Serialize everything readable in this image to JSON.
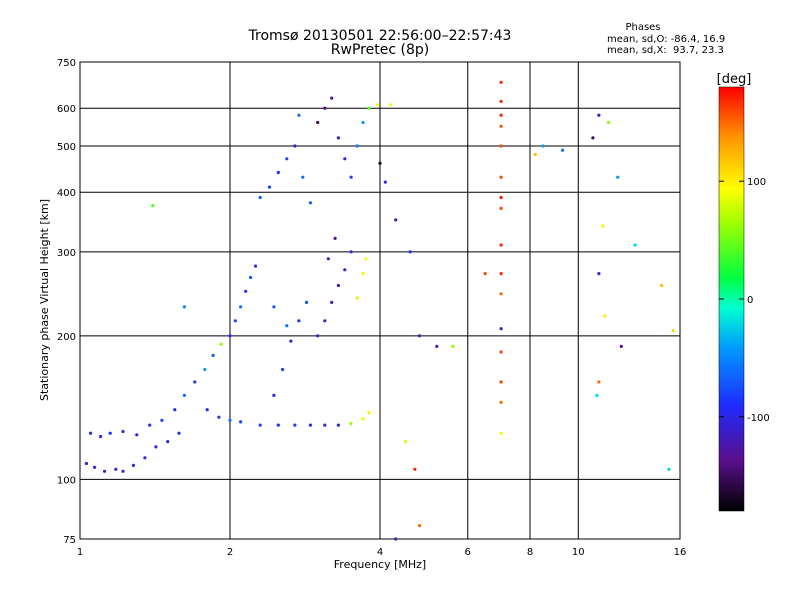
{
  "chart_data": {
    "type": "scatter",
    "title": "Tromsø 20130501 22:56:00–22:57:43",
    "subtitle": "RwPretec (8p)",
    "xlabel": "Frequency [MHz]",
    "ylabel": "Stationary phase Virtual Height [km]",
    "x_scale": "log",
    "y_scale": "log",
    "xlim": [
      1,
      16
    ],
    "ylim": [
      75,
      750
    ],
    "x_ticks": [
      1,
      2,
      4,
      6,
      8,
      10,
      16
    ],
    "x_tick_labels": [
      "1",
      "2",
      "4",
      "6",
      "8",
      "10",
      "16"
    ],
    "y_ticks": [
      75,
      100,
      200,
      300,
      400,
      500,
      600,
      750
    ],
    "y_tick_labels": [
      "75",
      "100",
      "200",
      "300",
      "400",
      "500",
      "600",
      "750"
    ],
    "grid": true,
    "phases_box": {
      "title": "Phases",
      "line1": "mean, sd,O: -86.4, 16.9",
      "line2": "mean, sd,X:  93.7, 23.3"
    },
    "colorbar": {
      "label": "[deg]",
      "range": [
        -180,
        180
      ],
      "ticks": [
        100,
        0,
        -100
      ],
      "tick_labels": [
        "100",
        "0",
        "-100"
      ]
    },
    "series": [
      {
        "points": [
          [
            1.03,
            108,
            -110
          ],
          [
            1.07,
            106,
            -105
          ],
          [
            1.12,
            104,
            -108
          ],
          [
            1.18,
            105,
            -100
          ],
          [
            1.22,
            104,
            -112
          ],
          [
            1.28,
            107,
            -95
          ],
          [
            1.35,
            111,
            -105
          ],
          [
            1.42,
            117,
            -100
          ],
          [
            1.5,
            120,
            -98
          ],
          [
            1.58,
            125,
            -92
          ],
          [
            1.05,
            125,
            -95
          ],
          [
            1.1,
            123,
            -100
          ],
          [
            1.15,
            125,
            -88
          ],
          [
            1.22,
            126,
            -95
          ],
          [
            1.3,
            124,
            -102
          ],
          [
            1.38,
            130,
            -90
          ],
          [
            1.46,
            133,
            -85
          ],
          [
            1.55,
            140,
            -90
          ],
          [
            1.62,
            150,
            -60
          ],
          [
            1.7,
            160,
            -80
          ],
          [
            1.78,
            170,
            -40
          ],
          [
            1.85,
            182,
            -70
          ],
          [
            1.92,
            192,
            60
          ],
          [
            2.0,
            200,
            -90
          ],
          [
            2.05,
            215,
            -80
          ],
          [
            2.1,
            230,
            -60
          ],
          [
            2.15,
            248,
            -90
          ],
          [
            2.2,
            265,
            -75
          ],
          [
            2.25,
            280,
            -100
          ],
          [
            1.8,
            140,
            -90
          ],
          [
            1.9,
            135,
            -85
          ],
          [
            2.0,
            133,
            -60
          ],
          [
            2.1,
            132,
            -80
          ],
          [
            2.3,
            130,
            -80
          ],
          [
            2.5,
            130,
            -90
          ],
          [
            2.7,
            130,
            -85
          ],
          [
            2.9,
            130,
            -95
          ],
          [
            3.1,
            130,
            -100
          ],
          [
            3.3,
            130,
            -100
          ],
          [
            3.5,
            131,
            60
          ],
          [
            3.7,
            134,
            90
          ],
          [
            3.8,
            138,
            100
          ],
          [
            2.45,
            150,
            -95
          ],
          [
            2.55,
            170,
            -80
          ],
          [
            2.65,
            195,
            -100
          ],
          [
            2.75,
            215,
            -90
          ],
          [
            2.85,
            235,
            -75
          ],
          [
            2.45,
            230,
            -70
          ],
          [
            2.6,
            210,
            -60
          ],
          [
            3.0,
            200,
            -110
          ],
          [
            3.1,
            215,
            -115
          ],
          [
            3.2,
            235,
            -120
          ],
          [
            3.3,
            255,
            -125
          ],
          [
            3.4,
            275,
            -110
          ],
          [
            3.5,
            300,
            -100
          ],
          [
            3.25,
            320,
            -130
          ],
          [
            3.15,
            290,
            -120
          ],
          [
            3.6,
            240,
            80
          ],
          [
            3.7,
            270,
            100
          ],
          [
            3.75,
            290,
            90
          ],
          [
            2.3,
            390,
            -70
          ],
          [
            2.4,
            410,
            -80
          ],
          [
            2.5,
            440,
            -90
          ],
          [
            2.6,
            470,
            -80
          ],
          [
            2.7,
            500,
            -100
          ],
          [
            2.8,
            430,
            -60
          ],
          [
            2.9,
            380,
            -70
          ],
          [
            2.75,
            580,
            -60
          ],
          [
            3.0,
            560,
            -150
          ],
          [
            3.1,
            600,
            -140
          ],
          [
            3.2,
            630,
            -130
          ],
          [
            3.3,
            520,
            -110
          ],
          [
            3.4,
            470,
            -100
          ],
          [
            3.5,
            430,
            -80
          ],
          [
            3.6,
            500,
            -60
          ],
          [
            3.7,
            560,
            -40
          ],
          [
            3.8,
            600,
            40
          ],
          [
            4.0,
            460,
            -180
          ],
          [
            4.1,
            420,
            -100
          ],
          [
            4.3,
            350,
            -120
          ],
          [
            4.6,
            300,
            -90
          ],
          [
            4.8,
            200,
            -120
          ],
          [
            5.2,
            190,
            -110
          ],
          [
            5.6,
            190,
            60
          ],
          [
            4.2,
            610,
            90
          ],
          [
            3.95,
            610,
            90
          ],
          [
            7.0,
            680,
            170
          ],
          [
            7.0,
            620,
            170
          ],
          [
            7.0,
            580,
            170
          ],
          [
            7.0,
            550,
            160
          ],
          [
            7.0,
            500,
            160
          ],
          [
            7.0,
            430,
            160
          ],
          [
            7.0,
            390,
            175
          ],
          [
            7.0,
            370,
            160
          ],
          [
            7.0,
            310,
            170
          ],
          [
            7.0,
            270,
            170
          ],
          [
            7.0,
            245,
            150
          ],
          [
            7.0,
            207,
            -120
          ],
          [
            7.0,
            185,
            160
          ],
          [
            7.0,
            160,
            160
          ],
          [
            7.0,
            145,
            150
          ],
          [
            7.0,
            125,
            90
          ],
          [
            6.5,
            270,
            160
          ],
          [
            11.0,
            580,
            -120
          ],
          [
            11.5,
            560,
            60
          ],
          [
            10.7,
            520,
            -150
          ],
          [
            12.0,
            430,
            -40
          ],
          [
            11.2,
            340,
            100
          ],
          [
            13.0,
            310,
            -20
          ],
          [
            11.0,
            270,
            -100
          ],
          [
            14.7,
            255,
            120
          ],
          [
            11.3,
            220,
            100
          ],
          [
            12.2,
            190,
            -130
          ],
          [
            15.5,
            205,
            110
          ],
          [
            11.0,
            160,
            150
          ],
          [
            10.9,
            150,
            -20
          ],
          [
            15.2,
            105,
            -20
          ],
          [
            1.4,
            375,
            40
          ],
          [
            1.62,
            230,
            -50
          ],
          [
            4.5,
            120,
            80
          ],
          [
            4.7,
            105,
            170
          ],
          [
            4.8,
            80,
            150
          ],
          [
            4.3,
            75,
            -120
          ],
          [
            8.2,
            480,
            120
          ],
          [
            8.5,
            500,
            -40
          ],
          [
            9.3,
            490,
            -60
          ]
        ]
      }
    ]
  }
}
